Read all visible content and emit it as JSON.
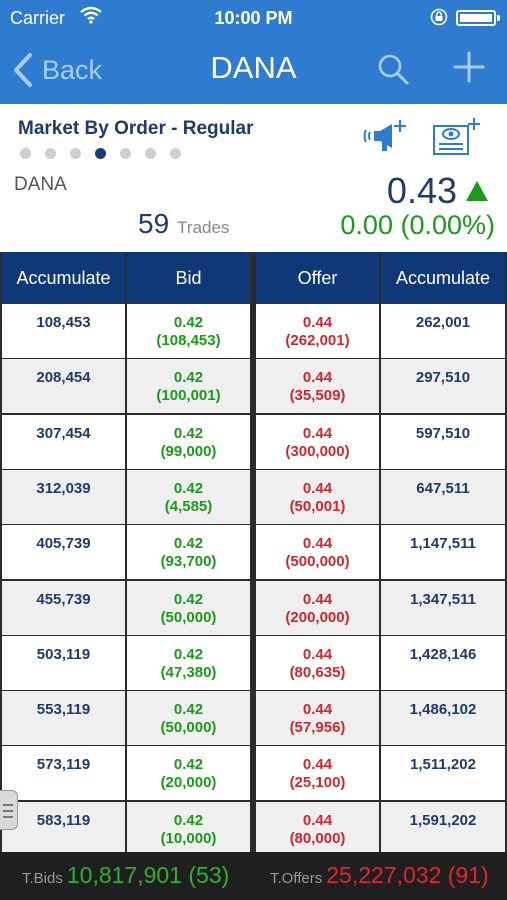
{
  "status_bar": {
    "carrier": "Carrier",
    "time": "10:00 PM"
  },
  "nav": {
    "back_label": "Back",
    "title": "DANA"
  },
  "info": {
    "section_title": "Market By Order - Regular",
    "page_dots": {
      "count": 7,
      "active_index": 3
    },
    "symbol": "DANA",
    "trades_count": "59",
    "trades_label": "Trades",
    "last_price": "0.43",
    "change": "0.00 (0.00%)"
  },
  "table": {
    "headers": [
      "Accumulate",
      "Bid",
      "Offer",
      "Accumulate"
    ],
    "rows": [
      {
        "bid_acc": "108,453",
        "bid_price": "0.42",
        "bid_qty": "(108,453)",
        "offer_price": "0.44",
        "offer_qty": "(262,001)",
        "offer_acc": "262,001"
      },
      {
        "bid_acc": "208,454",
        "bid_price": "0.42",
        "bid_qty": "(100,001)",
        "offer_price": "0.44",
        "offer_qty": "(35,509)",
        "offer_acc": "297,510"
      },
      {
        "bid_acc": "307,454",
        "bid_price": "0.42",
        "bid_qty": "(99,000)",
        "offer_price": "0.44",
        "offer_qty": "(300,000)",
        "offer_acc": "597,510"
      },
      {
        "bid_acc": "312,039",
        "bid_price": "0.42",
        "bid_qty": "(4,585)",
        "offer_price": "0.44",
        "offer_qty": "(50,001)",
        "offer_acc": "647,511"
      },
      {
        "bid_acc": "405,739",
        "bid_price": "0.42",
        "bid_qty": "(93,700)",
        "offer_price": "0.44",
        "offer_qty": "(500,000)",
        "offer_acc": "1,147,511"
      },
      {
        "bid_acc": "455,739",
        "bid_price": "0.42",
        "bid_qty": "(50,000)",
        "offer_price": "0.44",
        "offer_qty": "(200,000)",
        "offer_acc": "1,347,511"
      },
      {
        "bid_acc": "503,119",
        "bid_price": "0.42",
        "bid_qty": "(47,380)",
        "offer_price": "0.44",
        "offer_qty": "(80,635)",
        "offer_acc": "1,428,146"
      },
      {
        "bid_acc": "553,119",
        "bid_price": "0.42",
        "bid_qty": "(50,000)",
        "offer_price": "0.44",
        "offer_qty": "(57,956)",
        "offer_acc": "1,486,102"
      },
      {
        "bid_acc": "573,119",
        "bid_price": "0.42",
        "bid_qty": "(20,000)",
        "offer_price": "0.44",
        "offer_qty": "(25,100)",
        "offer_acc": "1,511,202"
      },
      {
        "bid_acc": "583,119",
        "bid_price": "0.42",
        "bid_qty": "(10,000)",
        "offer_price": "0.44",
        "offer_qty": "(80,000)",
        "offer_acc": "1,591,202"
      }
    ]
  },
  "footer": {
    "bids_label": "T.Bids",
    "bids_value": "10,817,901 (53)",
    "offers_label": "T.Offers",
    "offers_value": "25,227,032 (91)"
  },
  "colors": {
    "nav_blue": "#2e7bd0",
    "header_navy": "#0f3878",
    "bid_green": "#1a9a1a",
    "offer_red": "#d0262c",
    "text_navy": "#1d3b6e"
  },
  "icons": [
    "wifi-icon",
    "lock-rotation-icon",
    "battery-icon",
    "chevron-left-icon",
    "search-icon",
    "plus-icon",
    "announcement-icon",
    "news-icon",
    "arrow-up-icon",
    "drawer-handle-icon"
  ]
}
